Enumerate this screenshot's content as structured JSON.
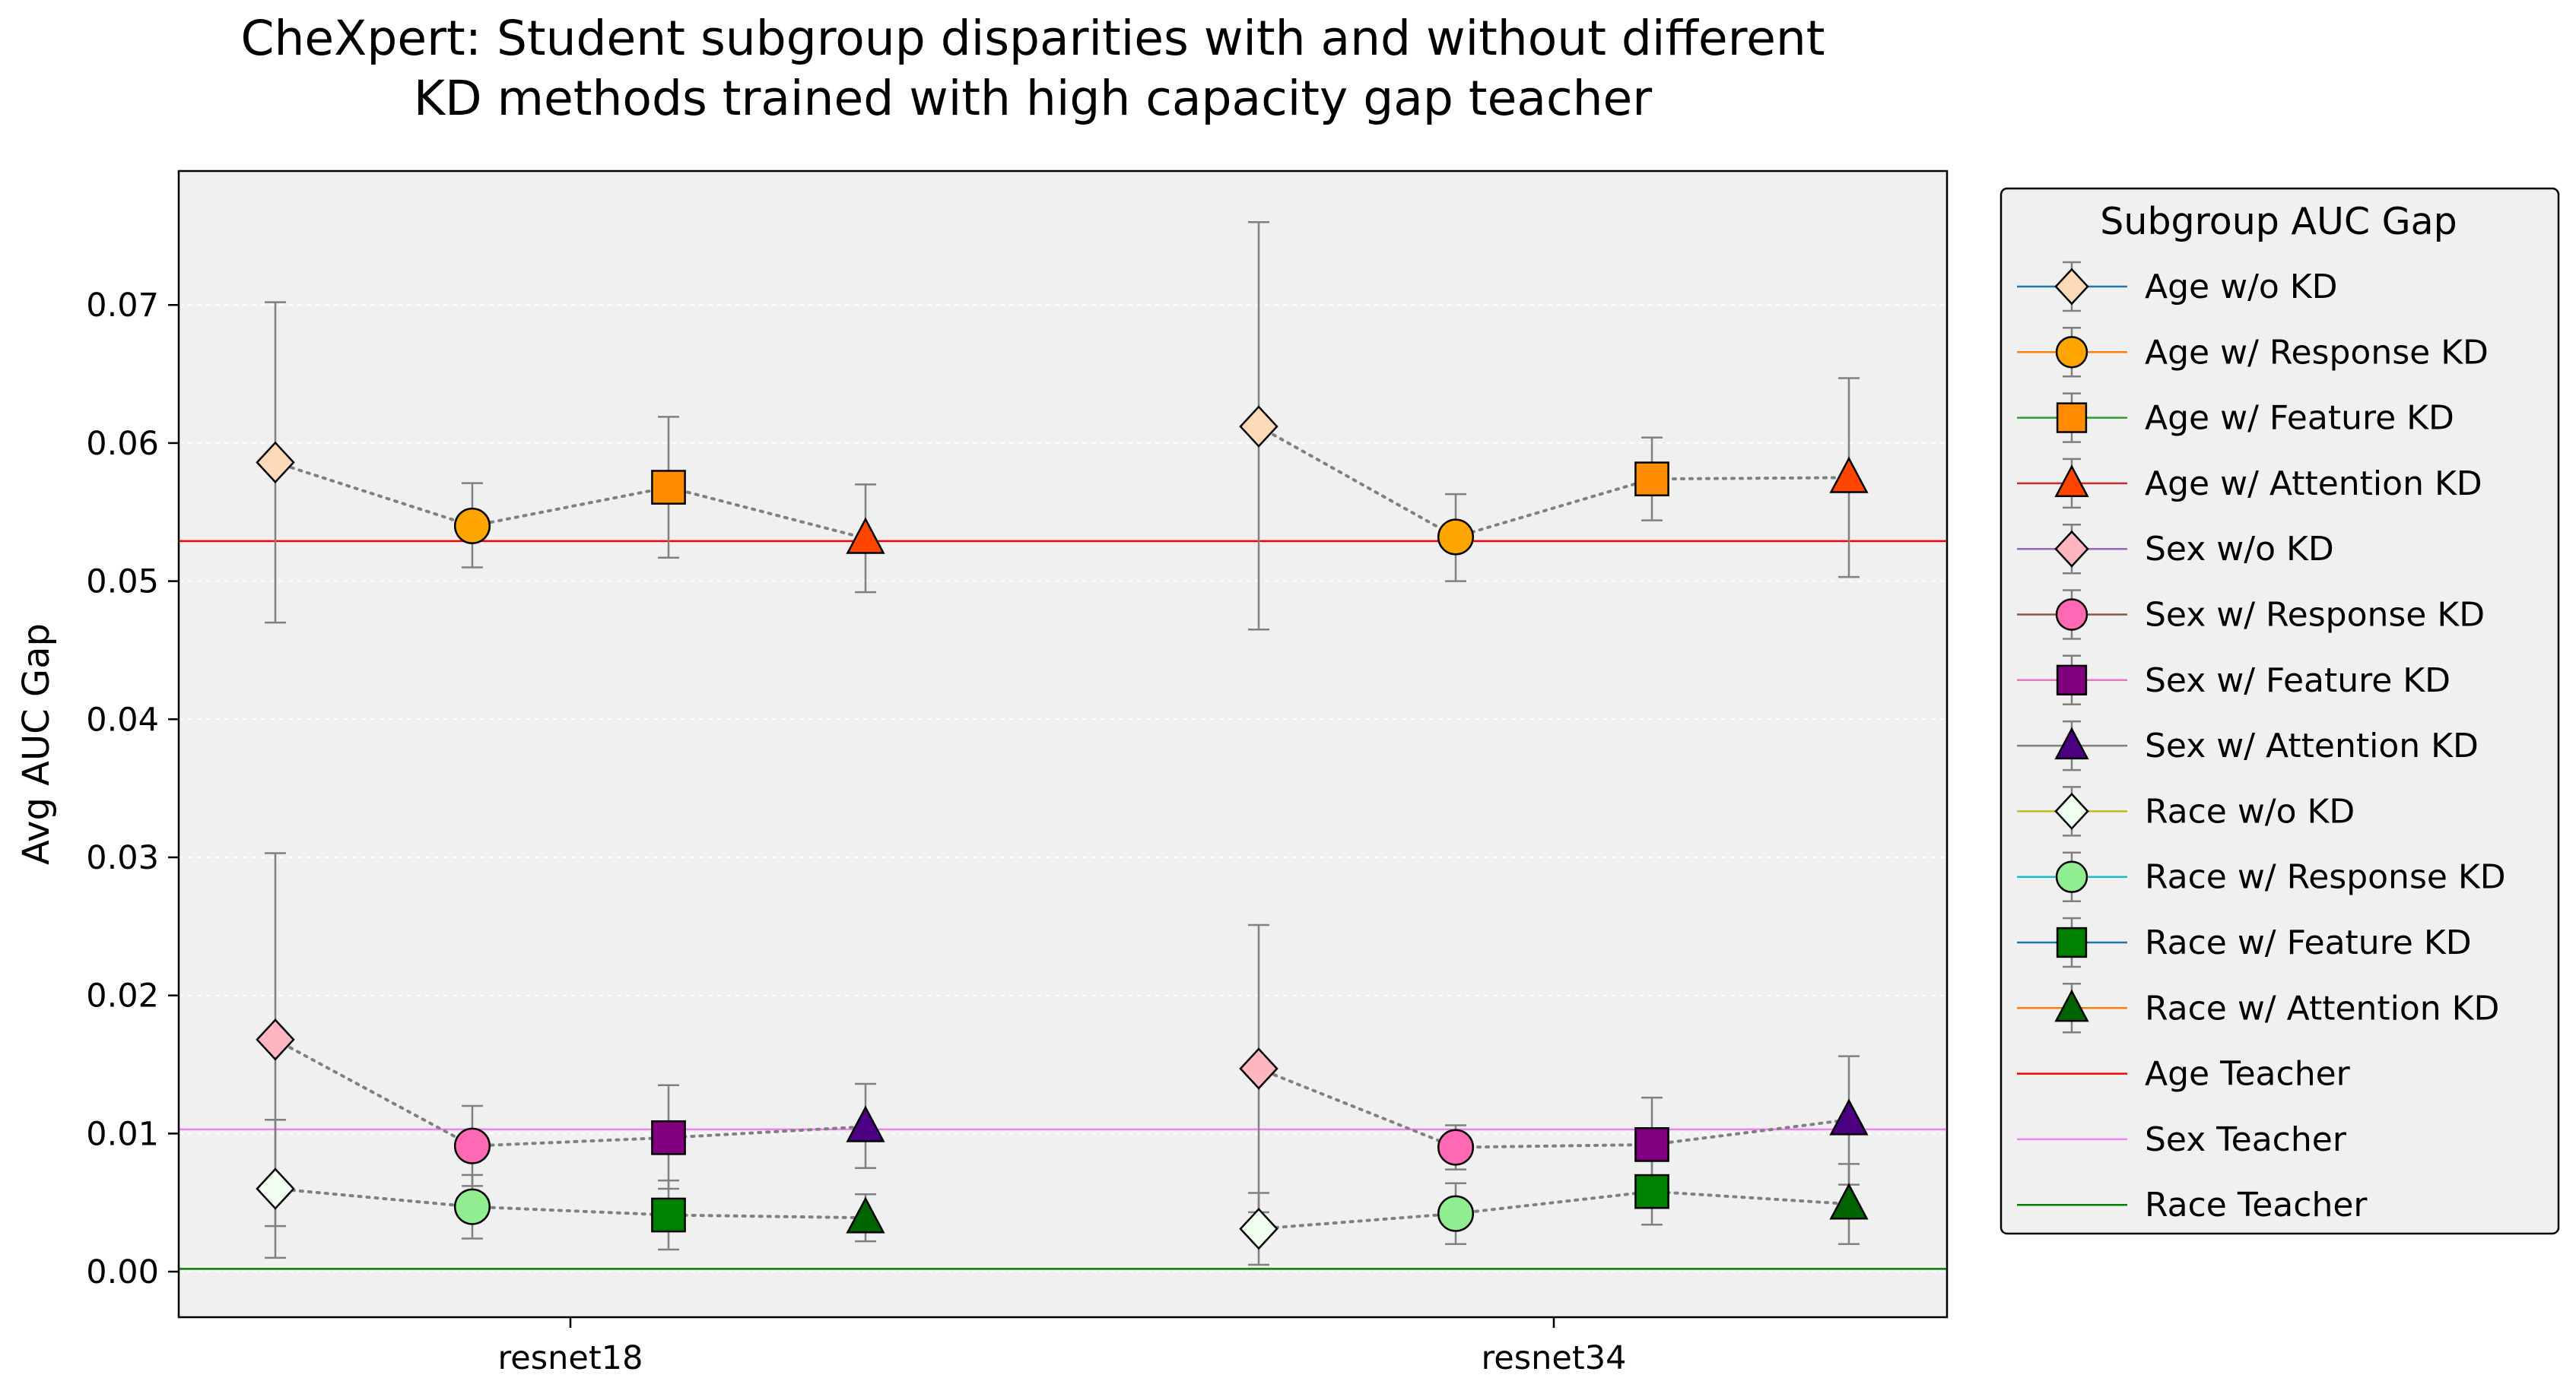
{
  "chart_data": {
    "type": "scatter",
    "title": [
      "CheXpert: Student subgroup disparities with and without different",
      "KD methods trained with high capacity gap teacher"
    ],
    "ylabel": "Avg AUC Gap",
    "xlabel": "",
    "categories": [
      "resnet18",
      "resnet34"
    ],
    "ylim": [
      -0.0033,
      0.0797
    ],
    "yticks": [
      "0.00",
      "0.01",
      "0.02",
      "0.03",
      "0.04",
      "0.05",
      "0.06",
      "0.07"
    ],
    "grid": true,
    "legend": {
      "title": "Subgroup AUC Gap",
      "placement": "outside-right"
    },
    "series": [
      {
        "name": "Age w/o KD",
        "group": "Age",
        "marker": "diamond",
        "color": "#FFDAB9",
        "line_color": "#1f77b4",
        "method_index": 0,
        "values": [
          0.0586,
          0.0612
        ],
        "err_low": [
          0.047,
          0.0465
        ],
        "err_high": [
          0.0702,
          0.076
        ]
      },
      {
        "name": "Age w/ Response KD",
        "group": "Age",
        "marker": "circle",
        "color": "#FFA500",
        "line_color": "#ff7f0e",
        "method_index": 1,
        "values": [
          0.054,
          0.0532
        ],
        "err_low": [
          0.051,
          0.05
        ],
        "err_high": [
          0.0571,
          0.0563
        ]
      },
      {
        "name": "Age w/ Feature KD",
        "group": "Age",
        "marker": "square",
        "color": "#FF8C00",
        "line_color": "#2ca02c",
        "method_index": 2,
        "values": [
          0.0568,
          0.0574
        ],
        "err_low": [
          0.0517,
          0.0544
        ],
        "err_high": [
          0.0619,
          0.0604
        ]
      },
      {
        "name": "Age w/ Attention KD",
        "group": "Age",
        "marker": "triangle",
        "color": "#FF4500",
        "line_color": "#d62728",
        "method_index": 3,
        "values": [
          0.0531,
          0.0575
        ],
        "err_low": [
          0.0492,
          0.0503
        ],
        "err_high": [
          0.057,
          0.0647
        ]
      },
      {
        "name": "Sex w/o KD",
        "group": "Sex",
        "marker": "diamond",
        "color": "#FFB6C1",
        "line_color": "#9467bd",
        "method_index": 0,
        "values": [
          0.0168,
          0.0147
        ],
        "err_low": [
          0.0033,
          0.0043
        ],
        "err_high": [
          0.0303,
          0.0251
        ]
      },
      {
        "name": "Sex w/ Response KD",
        "group": "Sex",
        "marker": "circle",
        "color": "#FF69B4",
        "line_color": "#8c564b",
        "method_index": 1,
        "values": [
          0.0091,
          0.009
        ],
        "err_low": [
          0.0062,
          0.0074
        ],
        "err_high": [
          0.012,
          0.0106
        ]
      },
      {
        "name": "Sex w/ Feature KD",
        "group": "Sex",
        "marker": "square",
        "color": "#800080",
        "line_color": "#e377c2",
        "method_index": 2,
        "values": [
          0.0097,
          0.0092
        ],
        "err_low": [
          0.006,
          0.0058
        ],
        "err_high": [
          0.0135,
          0.0126
        ]
      },
      {
        "name": "Sex w/ Attention KD",
        "group": "Sex",
        "marker": "triangle",
        "color": "#4B0082",
        "line_color": "#7f7f7f",
        "method_index": 3,
        "values": [
          0.0105,
          0.011
        ],
        "err_low": [
          0.0075,
          0.0063
        ],
        "err_high": [
          0.0136,
          0.0156
        ]
      },
      {
        "name": "Race w/o KD",
        "group": "Race",
        "marker": "diamond",
        "color": "#F0FFF0",
        "line_color": "#bcbd22",
        "method_index": 0,
        "values": [
          0.006,
          0.0031
        ],
        "err_low": [
          0.001,
          0.0005
        ],
        "err_high": [
          0.011,
          0.0057
        ]
      },
      {
        "name": "Race w/ Response KD",
        "group": "Race",
        "marker": "circle",
        "color": "#90EE90",
        "line_color": "#17becf",
        "method_index": 1,
        "values": [
          0.0047,
          0.0042
        ],
        "err_low": [
          0.0024,
          0.002
        ],
        "err_high": [
          0.007,
          0.0064
        ]
      },
      {
        "name": "Race w/ Feature KD",
        "group": "Race",
        "marker": "square",
        "color": "#008000",
        "line_color": "#1f77b4",
        "method_index": 2,
        "values": [
          0.0041,
          0.0058
        ],
        "err_low": [
          0.0016,
          0.0034
        ],
        "err_high": [
          0.0066,
          0.0082
        ]
      },
      {
        "name": "Race w/ Attention KD",
        "group": "Race",
        "marker": "triangle",
        "color": "#006400",
        "line_color": "#ff7f0e",
        "method_index": 3,
        "values": [
          0.0039,
          0.0049
        ],
        "err_low": [
          0.0022,
          0.002
        ],
        "err_high": [
          0.0056,
          0.0078
        ]
      }
    ],
    "teachers": [
      {
        "name": "Age Teacher",
        "value": 0.0529,
        "color": "#ff0000"
      },
      {
        "name": "Sex Teacher",
        "value": 0.0103,
        "color": "#ee82ee"
      },
      {
        "name": "Race Teacher",
        "value": 0.0002,
        "color": "#008000"
      }
    ],
    "colors": {
      "plot_bg": "#f0f0f0",
      "errorbar": "#808080",
      "connector": "#808080",
      "legend_bg": "#f0f0f0"
    }
  }
}
